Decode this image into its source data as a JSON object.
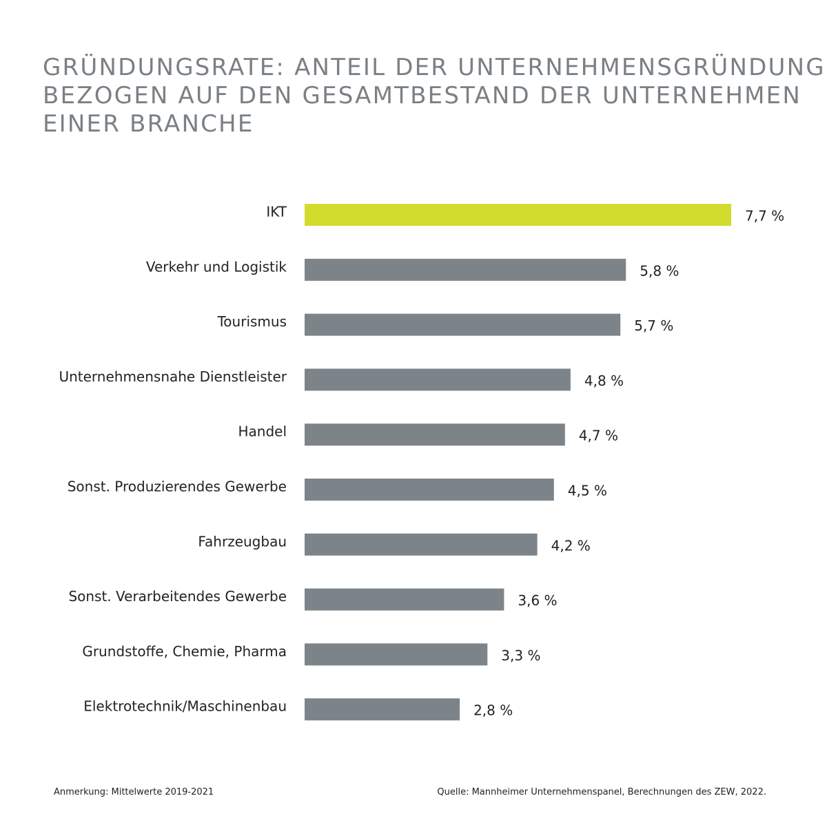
{
  "title_lines": [
    "GRÜNDUNGSRATE: ANTEIL DER UNTERNEHMENSGRÜNDUNGEN",
    "BEZOGEN AUF DEN GESAMTBESTAND DER UNTERNEHMEN",
    "EINER BRANCHE"
  ],
  "note": "Anmerkung: Mittelwerte 2019-2021",
  "source": "Quelle: Mannheimer Unternehmenspanel, Berechnungen des ZEW, 2022.",
  "colors": {
    "highlight": "#d2dc2e",
    "bar": "#7d8489",
    "title": "#7a8085",
    "text": "#222222"
  },
  "chart_data": {
    "type": "bar",
    "orientation": "horizontal",
    "title": "GRÜNDUNGSRATE: ANTEIL DER UNTERNEHMENSGRÜNDUNGEN BEZOGEN AUF DEN GESAMTBESTAND DER UNTERNEHMEN EINER BRANCHE",
    "categories": [
      "IKT",
      "Verkehr und Logistik",
      "Tourismus",
      "Unternehmensnahe Dienstleister",
      "Handel",
      "Sonst. Produzierendes Gewerbe",
      "Fahrzeugbau",
      "Sonst. Verarbeitendes Gewerbe",
      "Grundstoffe, Chemie, Pharma",
      "Elektrotechnik/Maschinenbau"
    ],
    "values": [
      7.7,
      5.8,
      5.7,
      4.8,
      4.7,
      4.5,
      4.2,
      3.6,
      3.3,
      2.8
    ],
    "value_labels": [
      "7,7 %",
      "5,8 %",
      "5,7 %",
      "4,8 %",
      "4,7 %",
      "4,5 %",
      "4,2 %",
      "3,6 %",
      "3,3 %",
      "2,8 %"
    ],
    "highlight_category": "IKT",
    "unit": "%",
    "xlim": [
      0,
      7.7
    ],
    "grid": false,
    "legend": "none"
  }
}
